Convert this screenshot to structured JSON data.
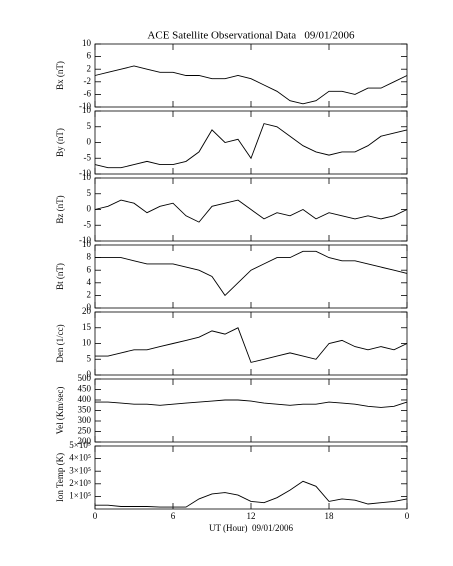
{
  "chart_data": [
    {
      "type": "line",
      "title": "ACE Satellite Observational Data   09/01/2006",
      "ylabel": "Bx (nT)",
      "x": [
        0,
        1,
        2,
        3,
        4,
        5,
        6,
        7,
        8,
        9,
        10,
        11,
        12,
        13,
        14,
        15,
        16,
        17,
        18,
        19,
        20,
        21,
        22,
        23,
        24
      ],
      "xlim": [
        0,
        24
      ],
      "ylim": [
        -10,
        10
      ],
      "yticks": [
        -10,
        -6,
        -2,
        2,
        6,
        10
      ],
      "series": [
        {
          "name": "Bx",
          "color": "#000000",
          "values": [
            0,
            1,
            2,
            3,
            2,
            1,
            1,
            0,
            0,
            -1,
            -1,
            0,
            -1,
            -3,
            -5,
            -8,
            -9,
            -8,
            -5,
            -5,
            -6,
            -4,
            -4,
            -2,
            0
          ]
        }
      ]
    },
    {
      "type": "line",
      "ylabel": "By (nT)",
      "x": [
        0,
        1,
        2,
        3,
        4,
        5,
        6,
        7,
        8,
        9,
        10,
        11,
        12,
        13,
        14,
        15,
        16,
        17,
        18,
        19,
        20,
        21,
        22,
        23,
        24
      ],
      "xlim": [
        0,
        24
      ],
      "ylim": [
        -10,
        10
      ],
      "yticks": [
        -10,
        -5,
        0,
        5,
        10
      ],
      "series": [
        {
          "name": "By",
          "color": "#000000",
          "values": [
            -7,
            -8,
            -8,
            -7,
            -6,
            -7,
            -7,
            -6,
            -3,
            4,
            0,
            1,
            -5,
            6,
            5,
            2,
            -1,
            -3,
            -4,
            -3,
            -3,
            -1,
            2,
            3,
            4
          ]
        }
      ]
    },
    {
      "type": "line",
      "ylabel": "Bz (nT)",
      "x": [
        0,
        1,
        2,
        3,
        4,
        5,
        6,
        7,
        8,
        9,
        10,
        11,
        12,
        13,
        14,
        15,
        16,
        17,
        18,
        19,
        20,
        21,
        22,
        23,
        24
      ],
      "xlim": [
        0,
        24
      ],
      "ylim": [
        -10,
        10
      ],
      "yticks": [
        -10,
        -5,
        0,
        5,
        10
      ],
      "series": [
        {
          "name": "Bz",
          "color": "#000000",
          "values": [
            0,
            1,
            3,
            2,
            -1,
            1,
            2,
            -2,
            -4,
            1,
            2,
            3,
            0,
            -3,
            -1,
            -2,
            0,
            -3,
            -1,
            -2,
            -3,
            -2,
            -3,
            -2,
            0
          ]
        }
      ]
    },
    {
      "type": "line",
      "ylabel": "Bt (nT)",
      "x": [
        0,
        1,
        2,
        3,
        4,
        5,
        6,
        7,
        8,
        9,
        10,
        11,
        12,
        13,
        14,
        15,
        16,
        17,
        18,
        19,
        20,
        21,
        22,
        23,
        24
      ],
      "xlim": [
        0,
        24
      ],
      "ylim": [
        0,
        10
      ],
      "yticks": [
        0,
        2,
        4,
        6,
        8,
        10
      ],
      "series": [
        {
          "name": "Bt",
          "color": "#000000",
          "values": [
            8,
            8,
            8,
            7.5,
            7,
            7,
            7,
            6.5,
            6,
            5,
            2,
            4,
            6,
            7,
            8,
            8,
            9,
            9,
            8,
            7.5,
            7.5,
            7,
            6.5,
            6,
            5.5
          ]
        }
      ]
    },
    {
      "type": "line",
      "ylabel": "Den (1/cc)",
      "x": [
        0,
        1,
        2,
        3,
        4,
        5,
        6,
        7,
        8,
        9,
        10,
        11,
        12,
        13,
        14,
        15,
        16,
        17,
        18,
        19,
        20,
        21,
        22,
        23,
        24
      ],
      "xlim": [
        0,
        24
      ],
      "ylim": [
        0,
        20
      ],
      "yticks": [
        0,
        5,
        10,
        15,
        20
      ],
      "series": [
        {
          "name": "Den",
          "color": "#000000",
          "values": [
            6,
            6,
            7,
            8,
            8,
            9,
            10,
            11,
            12,
            14,
            13,
            15,
            4,
            5,
            6,
            7,
            6,
            5,
            10,
            11,
            9,
            8,
            9,
            8,
            10
          ]
        }
      ]
    },
    {
      "type": "line",
      "ylabel": "Vel (Km/sec)",
      "x": [
        0,
        1,
        2,
        3,
        4,
        5,
        6,
        7,
        8,
        9,
        10,
        11,
        12,
        13,
        14,
        15,
        16,
        17,
        18,
        19,
        20,
        21,
        22,
        23,
        24
      ],
      "xlim": [
        0,
        24
      ],
      "ylim": [
        200,
        500
      ],
      "yticks": [
        200,
        250,
        300,
        350,
        400,
        450,
        500
      ],
      "series": [
        {
          "name": "Vel",
          "color": "#000000",
          "values": [
            390,
            390,
            385,
            380,
            380,
            375,
            380,
            385,
            390,
            395,
            400,
            400,
            395,
            385,
            380,
            375,
            380,
            380,
            390,
            385,
            380,
            370,
            365,
            370,
            390
          ]
        }
      ]
    },
    {
      "type": "line",
      "ylabel": "Ion Temp (K)",
      "xlabel": "UT (Hour)  09/01/2006",
      "x": [
        0,
        1,
        2,
        3,
        4,
        5,
        6,
        7,
        8,
        9,
        10,
        11,
        12,
        13,
        14,
        15,
        16,
        17,
        18,
        19,
        20,
        21,
        22,
        23,
        24
      ],
      "xlim": [
        0,
        24
      ],
      "xticks": [
        0,
        6,
        12,
        18,
        {
          "value": 24,
          "label": "0"
        }
      ],
      "ylim": [
        0,
        500000
      ],
      "yticks": [
        {
          "value": 100000,
          "label": "1×10⁵"
        },
        {
          "value": 200000,
          "label": "2×10⁵"
        },
        {
          "value": 300000,
          "label": "3×10⁵"
        },
        {
          "value": 400000,
          "label": "4×10⁵"
        },
        {
          "value": 500000,
          "label": "5×10⁵"
        }
      ],
      "series": [
        {
          "name": "Ion Temp",
          "color": "#000000",
          "values": [
            30000,
            30000,
            20000,
            20000,
            20000,
            15000,
            15000,
            15000,
            80000,
            120000,
            130000,
            110000,
            60000,
            50000,
            90000,
            150000,
            220000,
            180000,
            60000,
            80000,
            70000,
            40000,
            50000,
            60000,
            80000
          ]
        }
      ]
    }
  ]
}
